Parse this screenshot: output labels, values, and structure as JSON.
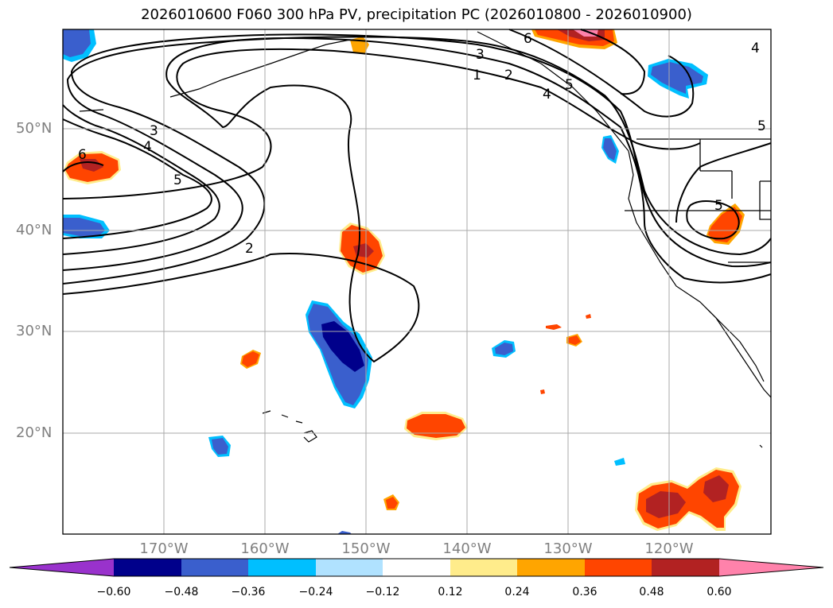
{
  "title": "2026010600 F060 300 hPa PV, precipitation PC (2026010800 - 2026010900)",
  "map": {
    "lon_range": [
      -180,
      -110
    ],
    "lat_range": [
      10,
      60
    ],
    "lat_labels": [
      "50°N",
      "40°N",
      "30°N",
      "20°N"
    ],
    "lon_labels": [
      "170°W",
      "160°W",
      "150°W",
      "140°W",
      "130°W",
      "120°W"
    ],
    "contour_labels": [
      "1",
      "2",
      "3",
      "4",
      "5",
      "6",
      "2",
      "3",
      "4",
      "5",
      "6",
      "4",
      "5",
      "5"
    ]
  },
  "colorbar": {
    "ticks": [
      "−0.60",
      "−0.48",
      "−0.36",
      "−0.24",
      "−0.12",
      "0.12",
      "0.24",
      "0.36",
      "0.48",
      "0.60"
    ],
    "colors": [
      "#9932cc",
      "#00008b",
      "#3a5fcd",
      "#00bfff",
      "#b0e2ff",
      "#ffffff",
      "#ffec8b",
      "#ffa500",
      "#ff4500",
      "#b22222",
      "#ff82ab"
    ]
  }
}
